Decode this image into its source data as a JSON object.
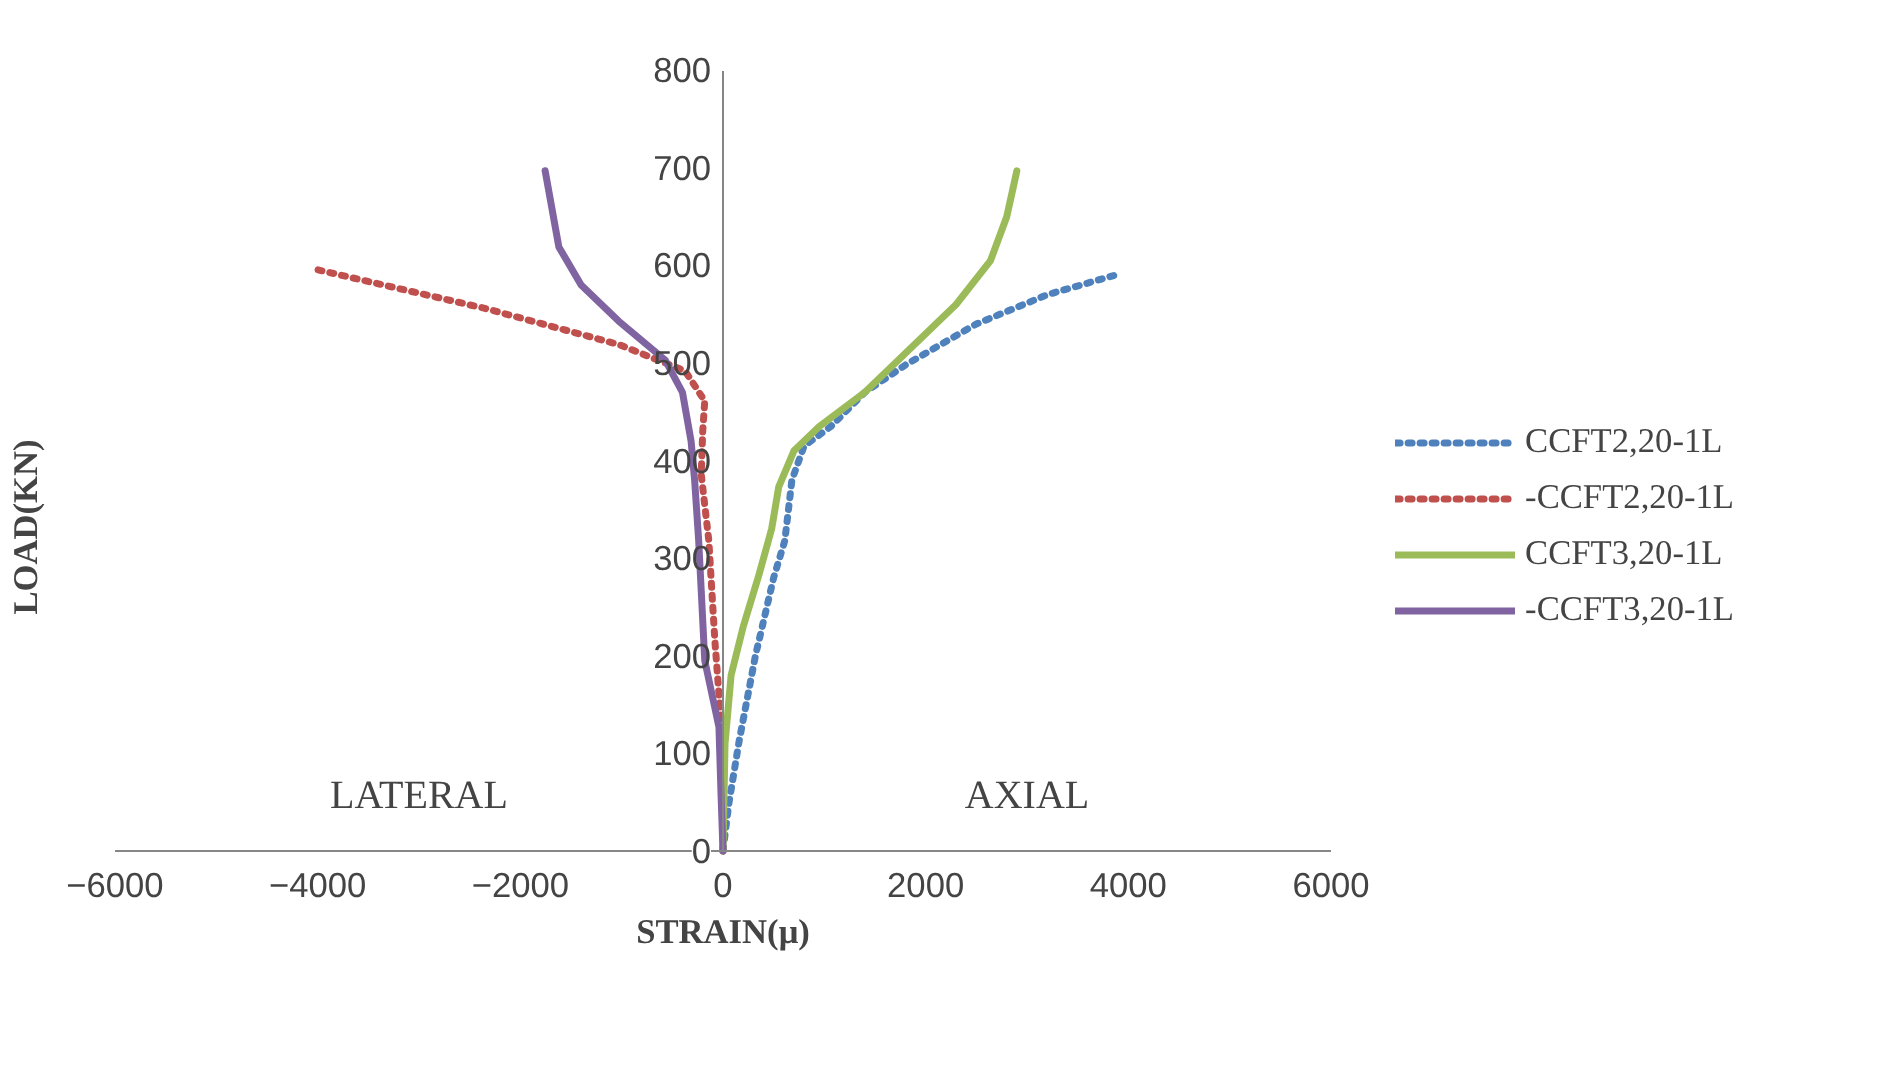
{
  "chart_data": {
    "type": "line",
    "xlabel": "STRAIN(μ)",
    "ylabel": "LOAD(KN)",
    "xlim": [
      -6000,
      6000
    ],
    "ylim": [
      0,
      800
    ],
    "xticks": [
      -6000,
      -4000,
      -2000,
      0,
      2000,
      4000,
      6000
    ],
    "yticks": [
      0,
      100,
      200,
      300,
      400,
      500,
      600,
      700,
      800
    ],
    "grid": false,
    "legend": "right",
    "series": [
      {
        "name": "CCFT2,20-1L",
        "color": "#4f81bd",
        "line_style": "dotted",
        "x": [
          0,
          60,
          160,
          320,
          500,
          610,
          680,
          800,
          1065,
          1400,
          1800,
          2500,
          3200,
          3900
        ],
        "values": [
          0,
          50,
          113,
          200,
          280,
          318,
          380,
          415,
          435,
          470,
          498,
          540,
          570,
          591
        ]
      },
      {
        "name": "-CCFT2,20-1L",
        "color": "#c0504d",
        "line_style": "dotted",
        "x": [
          0,
          -20,
          -80,
          -140,
          -215,
          -200,
          -180,
          -375,
          -1030,
          -2350,
          -4060
        ],
        "values": [
          0,
          133,
          215,
          318,
          386,
          430,
          461,
          492,
          519,
          556,
          597
        ]
      },
      {
        "name": "CCFT3,20-1L",
        "color": "#9bbb59",
        "line_style": "solid",
        "x": [
          0,
          20,
          80,
          200,
          355,
          480,
          550,
          700,
          950,
          1400,
          1790,
          2300,
          2640,
          2800,
          2900
        ],
        "values": [
          0,
          110,
          180,
          230,
          283,
          330,
          373,
          410,
          435,
          470,
          509,
          560,
          605,
          650,
          697
        ]
      },
      {
        "name": "-CCFT3,20-1L",
        "color": "#8064a2",
        "line_style": "solid",
        "x": [
          0,
          -20,
          -40,
          -180,
          -240,
          -280,
          -315,
          -400,
          -570,
          -1030,
          -1400,
          -1620,
          -1755
        ],
        "values": [
          0,
          60,
          127,
          195,
          318,
          380,
          420,
          470,
          503,
          543,
          580,
          619,
          697
        ]
      }
    ],
    "annotations": [
      "LATERAL",
      "AXIAL"
    ]
  }
}
